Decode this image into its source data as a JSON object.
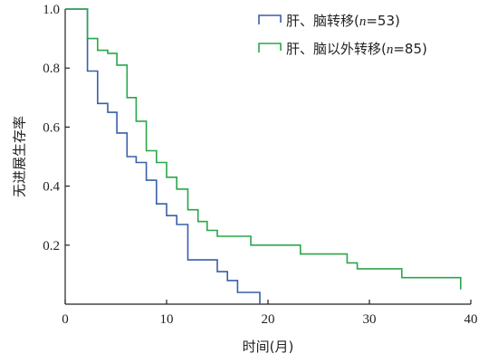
{
  "chart_data": {
    "type": "line",
    "step": true,
    "xlabel": "时间(月)",
    "ylabel": "无进展生存率",
    "xlim": [
      0,
      40
    ],
    "ylim": [
      0,
      1.0
    ],
    "x_ticks": [
      0,
      10,
      20,
      30,
      40
    ],
    "y_ticks": [
      0.2,
      0.4,
      0.6,
      0.8,
      1.0
    ],
    "x_tick_labels": [
      "0",
      "10",
      "20",
      "30",
      "40"
    ],
    "y_tick_labels": [
      "0.2",
      "0.4",
      "0.6",
      "0.8",
      "1.0"
    ],
    "grid": false,
    "legend_position": "top-right",
    "series": [
      {
        "name": "肝、脑转移(n=53)",
        "legend_prefix": "肝、脑转移(",
        "legend_n": "n",
        "legend_suffix": "=53)",
        "color": "#3a5ea8",
        "points": [
          [
            0,
            1.0
          ],
          [
            2.2,
            1.0
          ],
          [
            2.2,
            0.79
          ],
          [
            3.2,
            0.79
          ],
          [
            3.2,
            0.68
          ],
          [
            4.2,
            0.68
          ],
          [
            4.2,
            0.65
          ],
          [
            5.1,
            0.65
          ],
          [
            5.1,
            0.58
          ],
          [
            6.1,
            0.58
          ],
          [
            6.1,
            0.5
          ],
          [
            7,
            0.5
          ],
          [
            7,
            0.48
          ],
          [
            8,
            0.48
          ],
          [
            8,
            0.42
          ],
          [
            9,
            0.42
          ],
          [
            9,
            0.34
          ],
          [
            10,
            0.34
          ],
          [
            10,
            0.3
          ],
          [
            11,
            0.3
          ],
          [
            11,
            0.27
          ],
          [
            12.1,
            0.27
          ],
          [
            12.1,
            0.15
          ],
          [
            15,
            0.15
          ],
          [
            15,
            0.11
          ],
          [
            16,
            0.11
          ],
          [
            16,
            0.08
          ],
          [
            17,
            0.08
          ],
          [
            17,
            0.04
          ],
          [
            19.2,
            0.04
          ],
          [
            19.2,
            0.0
          ]
        ]
      },
      {
        "name": "肝、脑以外转移(n=85)",
        "legend_prefix": "肝、脑以外转移(",
        "legend_n": "n",
        "legend_suffix": "=85)",
        "color": "#2aa64a",
        "points": [
          [
            0,
            1.0
          ],
          [
            2.2,
            1.0
          ],
          [
            2.2,
            0.9
          ],
          [
            3.2,
            0.9
          ],
          [
            3.2,
            0.86
          ],
          [
            4.2,
            0.86
          ],
          [
            4.2,
            0.85
          ],
          [
            5.1,
            0.85
          ],
          [
            5.1,
            0.81
          ],
          [
            6.1,
            0.81
          ],
          [
            6.1,
            0.7
          ],
          [
            7,
            0.7
          ],
          [
            7,
            0.62
          ],
          [
            8,
            0.62
          ],
          [
            8,
            0.52
          ],
          [
            9,
            0.52
          ],
          [
            9,
            0.48
          ],
          [
            10,
            0.48
          ],
          [
            10,
            0.43
          ],
          [
            11,
            0.43
          ],
          [
            11,
            0.39
          ],
          [
            12.1,
            0.39
          ],
          [
            12.1,
            0.32
          ],
          [
            13.1,
            0.32
          ],
          [
            13.1,
            0.28
          ],
          [
            14,
            0.28
          ],
          [
            14,
            0.25
          ],
          [
            15,
            0.25
          ],
          [
            15,
            0.23
          ],
          [
            18.3,
            0.23
          ],
          [
            18.3,
            0.2
          ],
          [
            23.2,
            0.2
          ],
          [
            23.2,
            0.17
          ],
          [
            27.8,
            0.17
          ],
          [
            27.8,
            0.14
          ],
          [
            28.8,
            0.14
          ],
          [
            28.8,
            0.12
          ],
          [
            33.2,
            0.12
          ],
          [
            33.2,
            0.09
          ],
          [
            39,
            0.09
          ],
          [
            39,
            0.05
          ]
        ]
      }
    ]
  }
}
